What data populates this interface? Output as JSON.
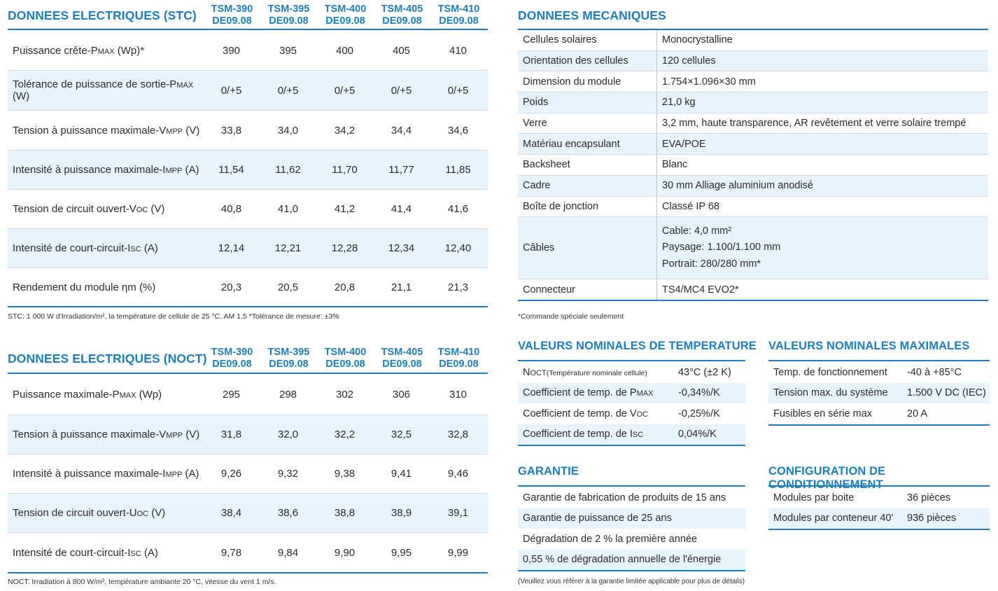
{
  "stc": {
    "title": "DONNEES ELECTRIQUES (STC)",
    "models": [
      {
        "l1": "TSM-390",
        "l2": "DE09.08"
      },
      {
        "l1": "TSM-395",
        "l2": "DE09.08"
      },
      {
        "l1": "TSM-400",
        "l2": "DE09.08"
      },
      {
        "l1": "TSM-405",
        "l2": "DE09.08"
      },
      {
        "l1": "TSM-410",
        "l2": "DE09.08"
      }
    ],
    "rows": [
      {
        "pre": "Puissance crête-P",
        "sub": "MAX",
        "post": " (Wp)*",
        "values": [
          "390",
          "395",
          "400",
          "405",
          "410"
        ]
      },
      {
        "pre": "Tolérance de puissance de sortie-P",
        "sub": "MAX",
        "post": " (W)",
        "values": [
          "0/+5",
          "0/+5",
          "0/+5",
          "0/+5",
          "0/+5"
        ]
      },
      {
        "pre": "Tension à puissance maximale-V",
        "sub": "MPP",
        "post": " (V)",
        "values": [
          "33,8",
          "34,0",
          "34,2",
          "34,4",
          "34,6"
        ]
      },
      {
        "pre": "Intensité à puissance maximale-I",
        "sub": "MPP",
        "post": " (A)",
        "values": [
          "11,54",
          "11,62",
          "11,70",
          "11,77",
          "11,85"
        ]
      },
      {
        "pre": "Tension de circuit ouvert-V",
        "sub": "OC",
        "post": " (V)",
        "values": [
          "40,8",
          "41,0",
          "41,2",
          "41,4",
          "41,6"
        ]
      },
      {
        "pre": "Intensité de court-circuit-I",
        "sub": "SC",
        "post": " (A)",
        "values": [
          "12,14",
          "12,21",
          "12,28",
          "12,34",
          "12,40"
        ]
      },
      {
        "pre": "Rendement du module ηm (%)",
        "sub": "",
        "post": "",
        "values": [
          "20,3",
          "20,5",
          "20,8",
          "21,1",
          "21,3"
        ]
      }
    ],
    "footnote": "STC: 1 000 W d'Irradiation/m², la température de cellule de 25 °C, AM 1.5   *Tolérance de mesure: ±3%"
  },
  "noct": {
    "title": "DONNEES ELECTRIQUES (NOCT)",
    "models": [
      {
        "l1": "TSM-390",
        "l2": "DE09.08"
      },
      {
        "l1": "TSM-395",
        "l2": "DE09.08"
      },
      {
        "l1": "TSM-400",
        "l2": "DE09.08"
      },
      {
        "l1": "TSM-405",
        "l2": "DE09.08"
      },
      {
        "l1": "TSM-410",
        "l2": "DE09.08"
      }
    ],
    "rows": [
      {
        "pre": "Puissance maximale-P",
        "sub": "MAX",
        "post": " (Wp)",
        "values": [
          "295",
          "298",
          "302",
          "306",
          "310"
        ]
      },
      {
        "pre": "Tension à puissance maximale-V",
        "sub": "MPP",
        "post": " (V)",
        "values": [
          "31,8",
          "32,0",
          "32,2",
          "32,5",
          "32,8"
        ]
      },
      {
        "pre": "Intensité à puissance maximale-I",
        "sub": "MPP",
        "post": " (A)",
        "values": [
          "9,26",
          "9,32",
          "9,38",
          "9,41",
          "9,46"
        ]
      },
      {
        "pre": "Tension de circuit ouvert-U",
        "sub": "OC",
        "post": " (V)",
        "values": [
          "38,4",
          "38,6",
          "38,8",
          "38,9",
          "39,1"
        ]
      },
      {
        "pre": "Intensité de court-circuit-I",
        "sub": "SC",
        "post": " (A)",
        "values": [
          "9,78",
          "9,84",
          "9,90",
          "9,95",
          "9,99"
        ]
      }
    ],
    "footnote": "NOCT: Irradiation à 800 W/m², température ambiante 20 °C, vitesse du vent 1 m/s."
  },
  "mech": {
    "title": "DONNEES MECANIQUES",
    "rows": [
      {
        "k": "Cellules solaires",
        "v": "Monocrystalline"
      },
      {
        "k": "Orientation des cellules",
        "v": "120 cellules"
      },
      {
        "k": "Dimension du module",
        "v": "1.754×1.096×30 mm"
      },
      {
        "k": "Poids",
        "v": "21,0 kg"
      },
      {
        "k": "Verre",
        "v": "3,2 mm, haute transparence, AR revêtement et verre solaire trempé"
      },
      {
        "k": "Matériau encapsulant",
        "v": "EVA/POE"
      },
      {
        "k": "Backsheet",
        "v": "Blanc"
      },
      {
        "k": "Cadre",
        "v": "30 mm Alliage aluminium anodisé"
      },
      {
        "k": "Boîte de jonction",
        "v": "Classé IP 68"
      },
      {
        "k": "Câbles",
        "lines": [
          "Cable: 4,0 mm²",
          "Paysage: 1.100/1.100 mm",
          "Portrait: 280/280 mm*"
        ]
      },
      {
        "k": "Connecteur",
        "v": "TS4/MC4 EVO2*"
      }
    ],
    "footnote": "*Commande spéciale seulement"
  },
  "temp": {
    "title": "VALEURS NOMINALES DE TEMPERATURE",
    "rows": [
      {
        "pre": "N",
        "sub": "OCT",
        "post": "",
        "note": "(Température nominale cellule)",
        "v": "43°C (±2 K)"
      },
      {
        "pre": "Coefficient de temp. de P",
        "sub": "MAX",
        "post": "",
        "note": "",
        "v": "-0,34%/K"
      },
      {
        "pre": "Coefficient de temp. de V",
        "sub": "OC",
        "post": "",
        "note": "",
        "v": "-0,25%/K"
      },
      {
        "pre": "Coefficient de temp. de I",
        "sub": "SC",
        "post": "",
        "note": "",
        "v": "0,04%/K"
      }
    ]
  },
  "max": {
    "title": "VALEURS NOMINALES MAXIMALES",
    "rows": [
      {
        "k": "Temp. de fonctionnement",
        "v": "-40 à +85°C"
      },
      {
        "k": "Tension max. du système",
        "v": "1.500 V DC (IEC)"
      },
      {
        "k": "Fusibles en série max",
        "v": "20 A"
      }
    ]
  },
  "garantie": {
    "title": "GARANTIE",
    "rows": [
      "Garantie de fabrication de produits de 15 ans",
      "Garantie de puissance de 25 ans",
      "Dégradation de 2 % la première année",
      "0,55 % de dégradation annuelle de l'énergie"
    ],
    "footnote": "(Veuillez vous référer à la garantie limitée applicable pour plus de détails)"
  },
  "config": {
    "title": "CONFIGURATION DE CONDITIONNEMENT",
    "rows": [
      {
        "k": "Modules par boite",
        "v": "36 pièces"
      },
      {
        "k": "Modules par conteneur 40'",
        "v": "936 pièces"
      }
    ]
  },
  "colors": {
    "accent": "#1a7fc1",
    "shade": "#e8f4fc"
  }
}
